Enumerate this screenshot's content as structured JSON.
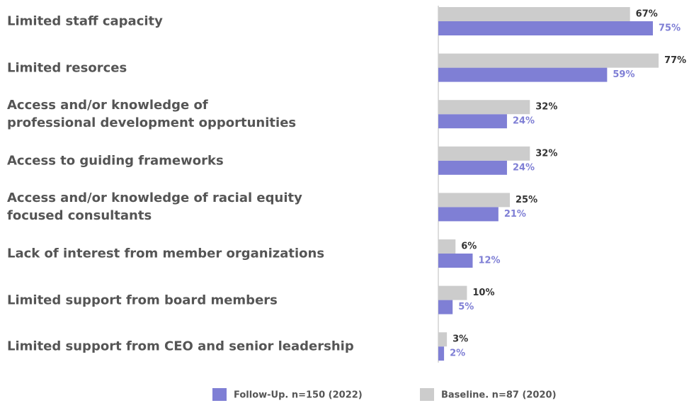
{
  "chart_data": {
    "type": "hbar",
    "categories": [
      "Limited staff capacity",
      "Limited resorces",
      "Access and/or knowledge of\nprofessional development opportunities",
      "Access to guiding frameworks",
      "Access and/or knowledge of racial equity\nfocused consultants",
      "Lack of interest from member organizations",
      "Limited support from board members",
      "Limited support from CEO and senior leadership"
    ],
    "series": [
      {
        "name": "Follow-Up. n=150 (2022)",
        "color": "#7f7fd5",
        "values": [
          75,
          59,
          24,
          24,
          21,
          12,
          5,
          2
        ],
        "value_labels": [
          "75%",
          "59%",
          "24%",
          "24%",
          "21%",
          "12%",
          "5%",
          "2%"
        ]
      },
      {
        "name": "Baseline. n=87 (2020)",
        "color": "#cccccc",
        "values": [
          67,
          77,
          32,
          32,
          25,
          6,
          10,
          3
        ],
        "value_labels": [
          "67%",
          "77%",
          "32%",
          "32%",
          "25%",
          "6%",
          "10%",
          "3%"
        ]
      }
    ]
  }
}
